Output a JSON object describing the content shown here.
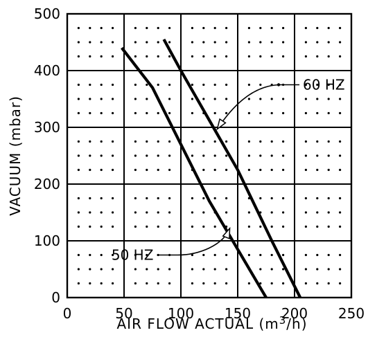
{
  "chart_data": {
    "type": "line",
    "title": "",
    "xlabel": "AIR FLOW ACTUAL (m",
    "xlabel_sup": "3",
    "xlabel_tail": "/h)",
    "ylabel": "VACUUM (mbar)",
    "xlim": [
      0,
      250
    ],
    "ylim": [
      0,
      500
    ],
    "x_ticks": [
      0,
      50,
      100,
      150,
      200,
      250
    ],
    "y_ticks": [
      0,
      100,
      200,
      300,
      400,
      500
    ],
    "x_tick_labels": [
      "0",
      "50",
      "100",
      "150",
      "200",
      "250"
    ],
    "y_tick_labels": [
      "0",
      "100",
      "200",
      "300",
      "400",
      "500"
    ],
    "grid": true,
    "grid_dots": true,
    "series": [
      {
        "name": "50 HZ",
        "x": [
          48,
          75,
          100,
          125,
          150,
          175
        ],
        "y": [
          440,
          370,
          270,
          170,
          85,
          0
        ]
      },
      {
        "name": "60 HZ",
        "x": [
          85,
          100,
          130,
          150,
          180,
          205
        ],
        "y": [
          455,
          400,
          295,
          225,
          100,
          0
        ]
      }
    ],
    "annotations": [
      {
        "text": "60 HZ",
        "series": "60 HZ",
        "point": [
          132,
          297
        ],
        "label_at": [
          186,
          375
        ]
      },
      {
        "text": "50 HZ",
        "series": "50 HZ",
        "point": [
          143,
          122
        ],
        "label_at": [
          85,
          75
        ]
      }
    ]
  }
}
